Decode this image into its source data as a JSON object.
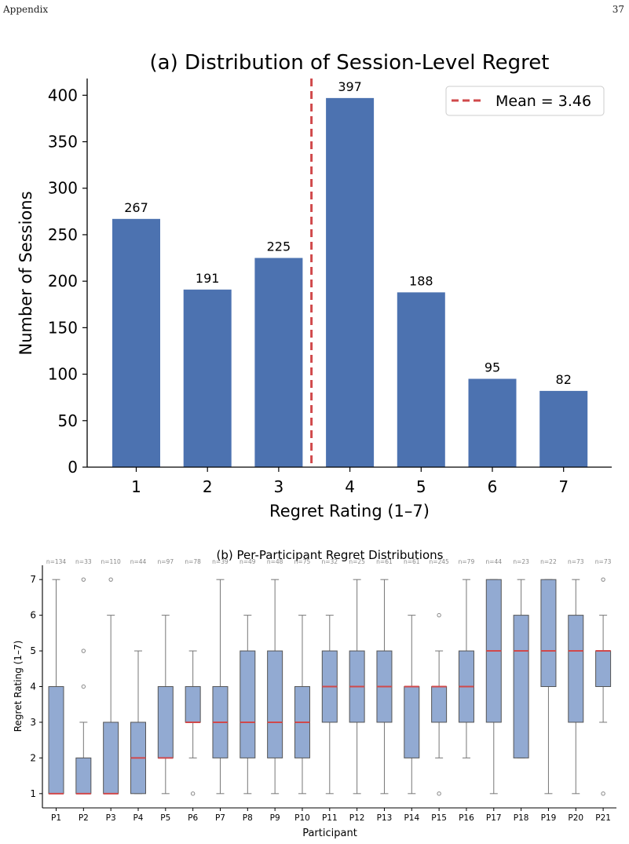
{
  "header": {
    "left": "Appendix",
    "right": "37"
  },
  "chart_data": [
    {
      "type": "bar",
      "title": "(a) Distribution of Session-Level Regret",
      "xlabel": "Regret Rating (1–7)",
      "ylabel": "Number of Sessions",
      "categories": [
        "1",
        "2",
        "3",
        "4",
        "5",
        "6",
        "7"
      ],
      "values": [
        267,
        191,
        225,
        397,
        188,
        95,
        82
      ],
      "ylim": [
        0,
        418
      ],
      "yticks": [
        0,
        50,
        100,
        150,
        200,
        250,
        300,
        350,
        400
      ],
      "mean_line": {
        "value": 3.46,
        "label": "Mean = 3.46",
        "color": "#d0494b"
      },
      "bar_color": "#4c72b0",
      "legend_position": "top-right",
      "grid": false
    },
    {
      "type": "box",
      "title": "(b) Per-Participant Regret Distributions",
      "xlabel": "Participant",
      "ylabel": "Regret Rating (1–7)",
      "ylim": [
        0.6,
        7.4
      ],
      "yticks": [
        1,
        2,
        3,
        4,
        5,
        6,
        7
      ],
      "box_color": "#92aad2",
      "median_color": "#d0494b",
      "grid": false,
      "participants": [
        {
          "label": "P1",
          "n": "n=134",
          "q1": 1,
          "median": 1,
          "q3": 4,
          "whisker_low": 1,
          "whisker_high": 7,
          "outliers": []
        },
        {
          "label": "P2",
          "n": "n=33",
          "q1": 1,
          "median": 1,
          "q3": 2,
          "whisker_low": 1,
          "whisker_high": 3,
          "outliers": [
            4,
            5,
            7
          ]
        },
        {
          "label": "P3",
          "n": "n=110",
          "q1": 1,
          "median": 1,
          "q3": 3,
          "whisker_low": 1,
          "whisker_high": 6,
          "outliers": [
            7
          ]
        },
        {
          "label": "P4",
          "n": "n=44",
          "q1": 1,
          "median": 2,
          "q3": 3,
          "whisker_low": 1,
          "whisker_high": 5,
          "outliers": []
        },
        {
          "label": "P5",
          "n": "n=97",
          "q1": 2,
          "median": 2,
          "q3": 4,
          "whisker_low": 1,
          "whisker_high": 6,
          "outliers": []
        },
        {
          "label": "P6",
          "n": "n=78",
          "q1": 3,
          "median": 3,
          "q3": 4,
          "whisker_low": 2,
          "whisker_high": 5,
          "outliers": [
            1
          ]
        },
        {
          "label": "P7",
          "n": "n=39",
          "q1": 2,
          "median": 3,
          "q3": 4,
          "whisker_low": 1,
          "whisker_high": 7,
          "outliers": []
        },
        {
          "label": "P8",
          "n": "n=49",
          "q1": 2,
          "median": 3,
          "q3": 5,
          "whisker_low": 1,
          "whisker_high": 6,
          "outliers": []
        },
        {
          "label": "P9",
          "n": "n=48",
          "q1": 2,
          "median": 3,
          "q3": 5,
          "whisker_low": 1,
          "whisker_high": 7,
          "outliers": []
        },
        {
          "label": "P10",
          "n": "n=75",
          "q1": 2,
          "median": 3,
          "q3": 4,
          "whisker_low": 1,
          "whisker_high": 6,
          "outliers": []
        },
        {
          "label": "P11",
          "n": "n=32",
          "q1": 3,
          "median": 4,
          "q3": 5,
          "whisker_low": 1,
          "whisker_high": 6,
          "outliers": []
        },
        {
          "label": "P12",
          "n": "n=25",
          "q1": 3,
          "median": 4,
          "q3": 5,
          "whisker_low": 1,
          "whisker_high": 7,
          "outliers": []
        },
        {
          "label": "P13",
          "n": "n=61",
          "q1": 3,
          "median": 4,
          "q3": 5,
          "whisker_low": 1,
          "whisker_high": 7,
          "outliers": []
        },
        {
          "label": "P14",
          "n": "n=61",
          "q1": 2,
          "median": 4,
          "q3": 4,
          "whisker_low": 1,
          "whisker_high": 6,
          "outliers": []
        },
        {
          "label": "P15",
          "n": "n=245",
          "q1": 3,
          "median": 4,
          "q3": 4,
          "whisker_low": 2,
          "whisker_high": 5,
          "outliers": [
            1,
            6
          ]
        },
        {
          "label": "P16",
          "n": "n=79",
          "q1": 3,
          "median": 4,
          "q3": 5,
          "whisker_low": 2,
          "whisker_high": 7,
          "outliers": []
        },
        {
          "label": "P17",
          "n": "n=44",
          "q1": 3,
          "median": 5,
          "q3": 7,
          "whisker_low": 1,
          "whisker_high": 7,
          "outliers": []
        },
        {
          "label": "P18",
          "n": "n=23",
          "q1": 2,
          "median": 5,
          "q3": 6,
          "whisker_low": 2,
          "whisker_high": 7,
          "outliers": []
        },
        {
          "label": "P19",
          "n": "n=22",
          "q1": 4,
          "median": 5,
          "q3": 7,
          "whisker_low": 1,
          "whisker_high": 7,
          "outliers": []
        },
        {
          "label": "P20",
          "n": "n=73",
          "q1": 3,
          "median": 5,
          "q3": 6,
          "whisker_low": 1,
          "whisker_high": 7,
          "outliers": []
        },
        {
          "label": "P21",
          "n": "n=73",
          "q1": 4,
          "median": 5,
          "q3": 5,
          "whisker_low": 3,
          "whisker_high": 6,
          "outliers": [
            1,
            7
          ]
        }
      ]
    }
  ]
}
